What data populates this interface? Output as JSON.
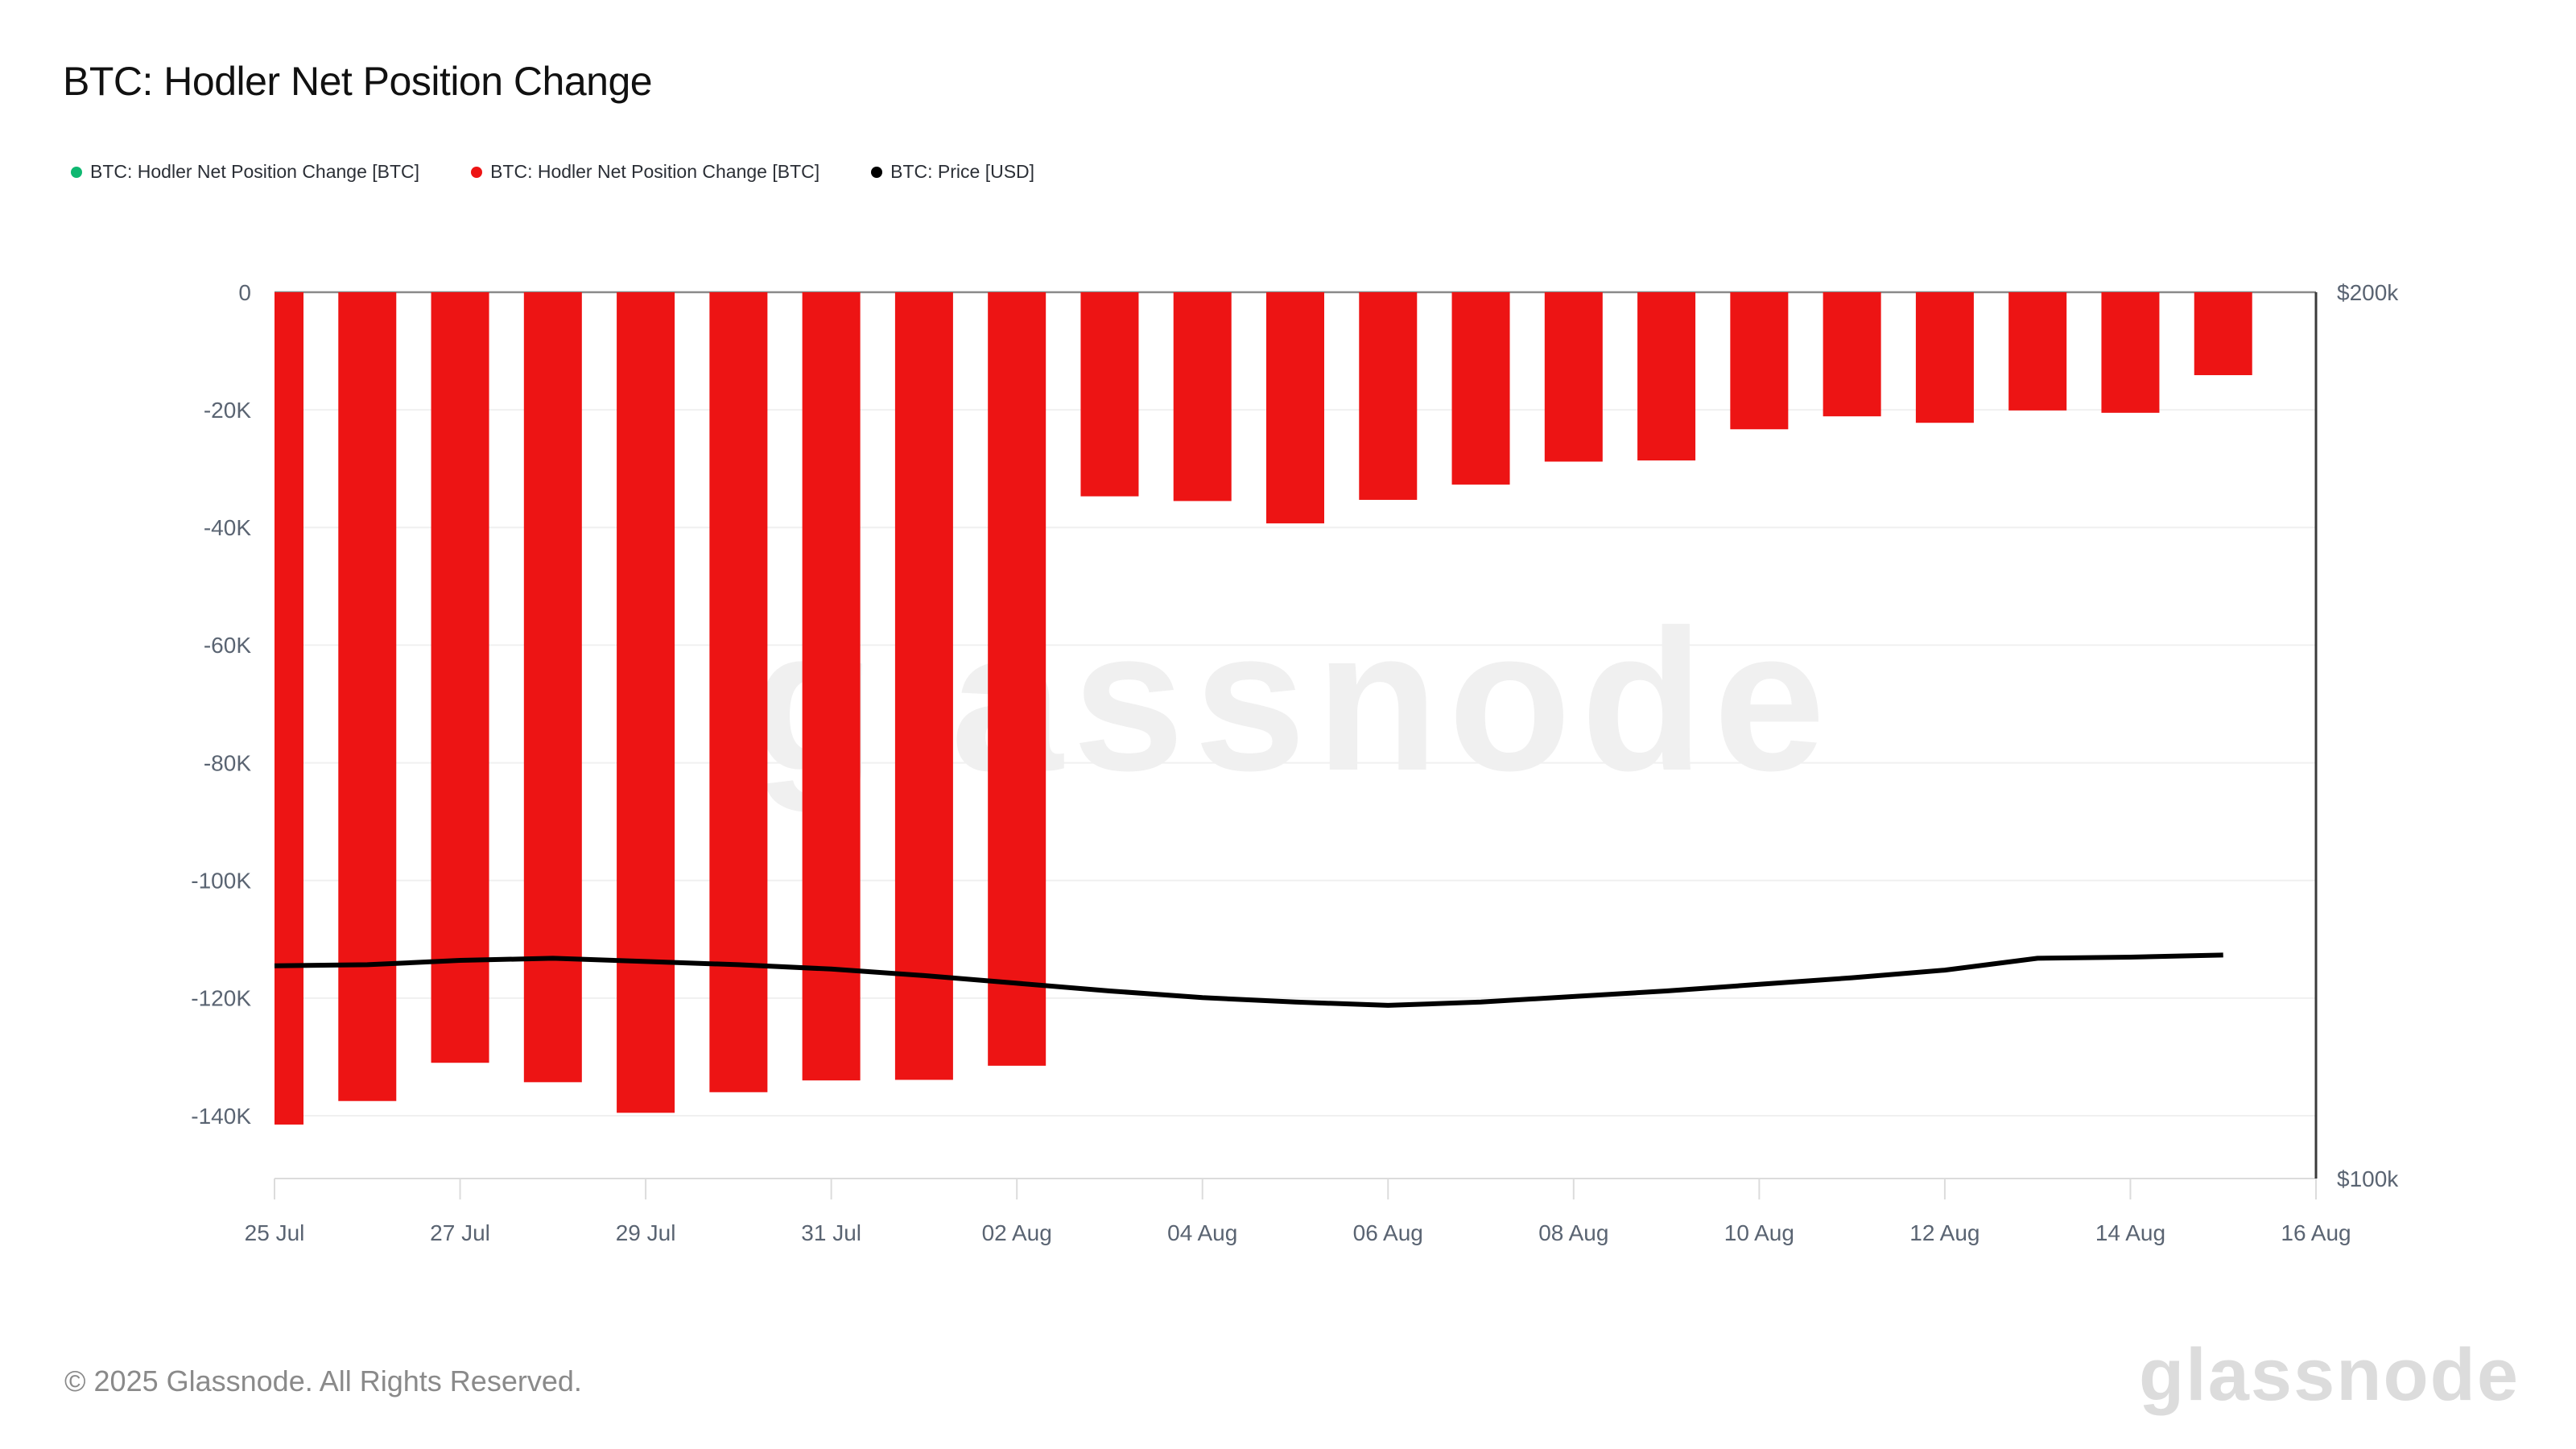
{
  "title": "BTC: Hodler Net Position Change",
  "legend": {
    "items": [
      {
        "label": "BTC: Hodler Net Position Change [BTC]",
        "color": "#0fb871"
      },
      {
        "label": "BTC: Hodler Net Position Change [BTC]",
        "color": "#ed1414"
      },
      {
        "label": "BTC: Price [USD]",
        "color": "#000000"
      }
    ]
  },
  "watermark": {
    "text": "glassnode"
  },
  "footer": {
    "copyright": "© 2025 Glassnode. All Rights Reserved.",
    "brand": "glassnode"
  },
  "colors": {
    "bar_red": "#ed1414",
    "price_line": "#000000",
    "grid_line": "#f0f0f0",
    "zero_line": "#8a8a8a",
    "bottom_axis": "#dcdcdc",
    "right_axis_line": "#3a3a3a",
    "axis_text": "#5a6472"
  },
  "chart_data": {
    "type": "bar",
    "title": "BTC: Hodler Net Position Change",
    "categories": [
      "25 Jul",
      "26 Jul",
      "27 Jul",
      "28 Jul",
      "29 Jul",
      "30 Jul",
      "31 Jul",
      "01 Aug",
      "02 Aug",
      "03 Aug",
      "04 Aug",
      "05 Aug",
      "06 Aug",
      "07 Aug",
      "08 Aug",
      "09 Aug",
      "10 Aug",
      "11 Aug",
      "12 Aug",
      "13 Aug",
      "14 Aug",
      "15 Aug"
    ],
    "series": [
      {
        "name": "BTC: Hodler Net Position Change [BTC]",
        "type": "bar",
        "axis": "left",
        "color": "#ed1414",
        "values": [
          -141500,
          -137500,
          -131000,
          -134300,
          -139500,
          -136000,
          -134000,
          -133900,
          -131500,
          -34700,
          -35500,
          -39300,
          -35300,
          -32700,
          -28800,
          -28600,
          -23300,
          -21100,
          -22200,
          -20100,
          -20500,
          -14100
        ]
      },
      {
        "name": "BTC: Price [USD]",
        "type": "line",
        "axis": "right",
        "color": "#000000",
        "values": [
          118100,
          118200,
          118600,
          118800,
          118500,
          118200,
          117800,
          117200,
          116500,
          115800,
          115200,
          114800,
          114500,
          114800,
          115300,
          115800,
          116400,
          117000,
          117700,
          118800,
          118900,
          119100
        ]
      }
    ],
    "x_tick_labels": [
      "25 Jul",
      "27 Jul",
      "29 Jul",
      "31 Jul",
      "02 Aug",
      "04 Aug",
      "06 Aug",
      "08 Aug",
      "10 Aug",
      "12 Aug",
      "14 Aug",
      "16 Aug"
    ],
    "y_left": {
      "tick_labels": [
        "0",
        "-20K",
        "-40K",
        "-60K",
        "-80K",
        "-100K",
        "-120K",
        "-140K"
      ],
      "tick_values": [
        0,
        -20000,
        -40000,
        -60000,
        -80000,
        -100000,
        -120000,
        -140000
      ],
      "min": -150700,
      "max": 0
    },
    "y_right": {
      "tick_labels": [
        "$200k",
        "$100k"
      ],
      "tick_values": [
        200000,
        100000
      ],
      "scale": "log",
      "top_value": 200000,
      "bottom_value": 100000
    },
    "grid": "horizontal-only",
    "legend_position": "top-left"
  }
}
